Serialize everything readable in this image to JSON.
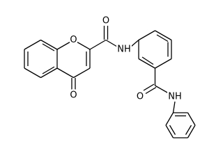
{
  "molecule": {
    "atom_labels": [
      "O",
      "O",
      "O",
      "NH",
      "O",
      "NH"
    ]
  }
}
